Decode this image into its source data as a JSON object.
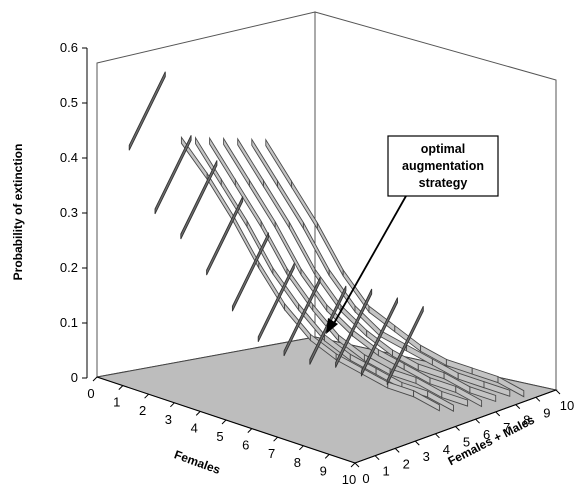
{
  "chart_data": {
    "type": "surface",
    "title": "",
    "zlabel": "Probability of extinction",
    "xlabel": "Females",
    "ylabel": "Females + Males",
    "zlim": [
      0,
      0.6
    ],
    "z_ticks": [
      "0",
      "0.1",
      "0.2",
      "0.3",
      "0.4",
      "0.5",
      "0.6"
    ],
    "x_ticks": [
      "0",
      "1",
      "2",
      "3",
      "4",
      "5",
      "6",
      "7",
      "8",
      "9",
      "10"
    ],
    "y_ticks": [
      "0",
      "1",
      "2",
      "3",
      "4",
      "5",
      "6",
      "7",
      "8",
      "9",
      "10"
    ],
    "grid": false,
    "series": [
      {
        "values": [
          0.38,
          0.33,
          0.27,
          0.2,
          0.14,
          0.1,
          0.08,
          0.07,
          0.06,
          0.06,
          0.05
        ]
      },
      {
        "values": [
          0.37,
          0.31,
          0.25,
          0.18,
          0.13,
          0.09,
          0.07,
          0.06,
          0.05,
          0.05,
          0.04
        ]
      },
      {
        "values": [
          0.36,
          0.3,
          0.24,
          0.17,
          0.12,
          0.08,
          0.06,
          0.05,
          0.05,
          0.04,
          0.04
        ]
      },
      {
        "values": [
          0.35,
          0.29,
          0.23,
          0.16,
          0.11,
          0.08,
          0.06,
          0.05,
          0.04,
          0.04,
          0.03
        ]
      },
      {
        "values": [
          0.34,
          0.28,
          0.22,
          0.15,
          0.1,
          0.07,
          0.05,
          0.04,
          0.04,
          0.03,
          0.03
        ]
      },
      {
        "values": [
          0.33,
          0.27,
          0.21,
          0.14,
          0.09,
          0.06,
          0.05,
          0.04,
          0.03,
          0.03,
          0.03
        ]
      },
      {
        "values": [
          0.32,
          0.26,
          0.2,
          0.13,
          0.08,
          0.06,
          0.04,
          0.03,
          0.03,
          0.03,
          0.02
        ]
      }
    ],
    "highlight_values": [
      0.4,
      0.3,
      0.27,
      0.22,
      0.17,
      0.13,
      0.12,
      0.12,
      0.13,
      0.13,
      0.13
    ],
    "annotation": {
      "lines": [
        "optimal",
        "augmentation",
        "strategy"
      ],
      "target_x": 4,
      "target_y": 8
    },
    "colors": {
      "floor": "#bdbdbd",
      "ribbon": "#c4c4c4",
      "ribbon_stroke": "#4a4a4a",
      "highlight": "#6e6e6e",
      "axis": "#555555"
    }
  }
}
